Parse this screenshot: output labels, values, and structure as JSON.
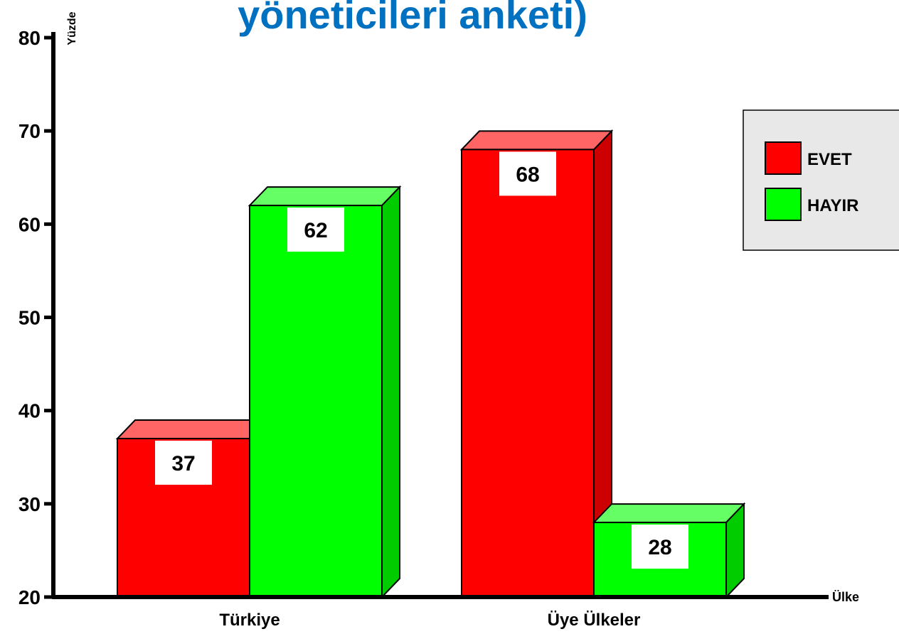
{
  "chart_data": {
    "type": "bar3d",
    "title": "yöneticileri anketi)",
    "y_label": "Yüzde",
    "x_label": "Ülke",
    "categories": [
      "Türkiye",
      "Üye Ülkeler"
    ],
    "series": [
      {
        "name": "EVET",
        "color": "#ff0000",
        "values": [
          37,
          68
        ]
      },
      {
        "name": "HAYIR",
        "color": "#00ff00",
        "values": [
          62,
          28
        ]
      }
    ],
    "ylim": [
      20,
      80
    ],
    "yticks": [
      20,
      30,
      40,
      50,
      60,
      70,
      80
    ],
    "legend": "right"
  }
}
